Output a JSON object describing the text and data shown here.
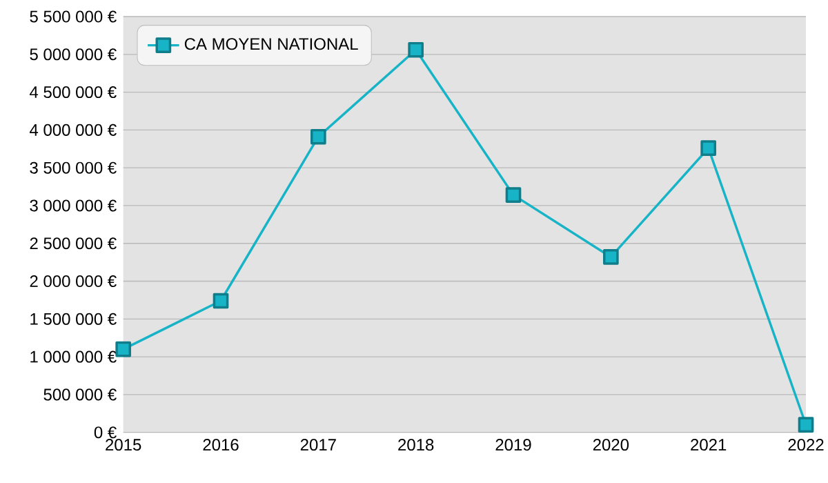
{
  "chart_data": {
    "type": "line",
    "x": [
      2015,
      2016,
      2017,
      2018,
      2019,
      2020,
      2021,
      2022
    ],
    "series": [
      {
        "name": "CA MOYEN NATIONAL",
        "color": "#17b3c6",
        "values": [
          1100000,
          1740000,
          3910000,
          5060000,
          3140000,
          2320000,
          3760000,
          100000
        ]
      }
    ],
    "xlim": [
      2015,
      2022
    ],
    "xticks": [
      2015,
      2016,
      2017,
      2018,
      2019,
      2020,
      2021,
      2022
    ],
    "ylim": [
      0,
      5500000
    ],
    "yticks": [
      {
        "value": 0,
        "label": "0 €"
      },
      {
        "value": 500000,
        "label": "500 000 €"
      },
      {
        "value": 1000000,
        "label": "1 000 000 €"
      },
      {
        "value": 1500000,
        "label": "1 500 000 €"
      },
      {
        "value": 2000000,
        "label": "2 000 000 €"
      },
      {
        "value": 2500000,
        "label": "2 500 000 €"
      },
      {
        "value": 3000000,
        "label": "3 000 000 €"
      },
      {
        "value": 3500000,
        "label": "3 500 000 €"
      },
      {
        "value": 4000000,
        "label": "4 000 000 €"
      },
      {
        "value": 4500000,
        "label": "4 500 000 €"
      },
      {
        "value": 5000000,
        "label": "5 000 000 €"
      },
      {
        "value": 5500000,
        "label": "5 500 000 €"
      }
    ],
    "grid": "y",
    "legend": "top left",
    "marker": "square",
    "line_style": "solid"
  }
}
